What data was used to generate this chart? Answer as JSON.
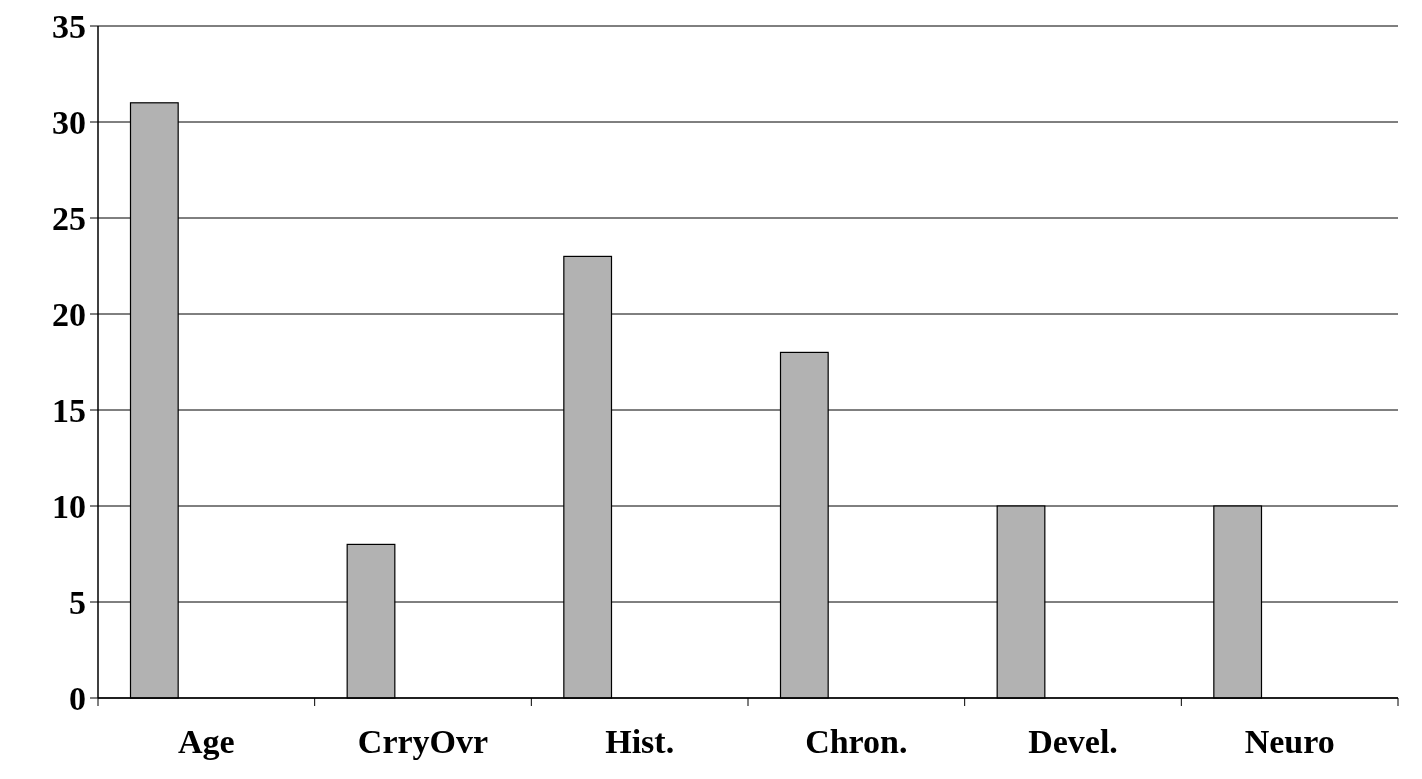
{
  "chart_data": {
    "type": "bar",
    "categories": [
      "Age",
      "CrryOvr",
      "Hist.",
      "Chron.",
      "Devel.",
      "Neuro"
    ],
    "values": [
      31,
      8,
      23,
      18,
      10,
      10
    ],
    "color": "#b2b2b2",
    "ylim": [
      0,
      35
    ],
    "yticks": [
      0,
      5,
      10,
      15,
      20,
      25,
      30,
      35
    ],
    "grid": "y"
  }
}
